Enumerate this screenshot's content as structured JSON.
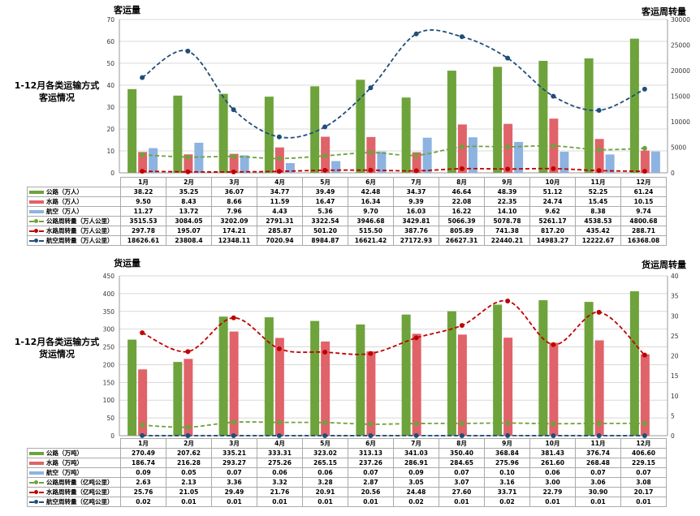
{
  "charts": [
    {
      "side_title": [
        "1-12月各类运输方式",
        "客运情况"
      ],
      "left_title": "客运量",
      "right_title": "客运周转量"
    },
    {
      "side_title": [
        "1-12月各类运输方式",
        "货运情况"
      ],
      "left_title": "货运量",
      "right_title": "货运周转量"
    }
  ],
  "chart_data": [
    {
      "type": "bar+line",
      "title": "1-12月各类运输方式 客运情况",
      "ylabel": "客运量",
      "y2label": "客运周转量",
      "ylim": [
        0,
        70
      ],
      "yticks_step": 10,
      "y2lim": [
        0,
        30000
      ],
      "y2ticks_step": 5000,
      "grid": true,
      "categories": [
        "1月",
        "2月",
        "3月",
        "4月",
        "5月",
        "6月",
        "7月",
        "8月",
        "9月",
        "10月",
        "11月",
        "12月"
      ],
      "series": [
        {
          "name": "公路（万人）",
          "kind": "bar",
          "axis": "left",
          "color": "#6ea33c",
          "values": [
            "38.22",
            "35.25",
            "36.07",
            "34.77",
            "39.49",
            "42.48",
            "34.37",
            "46.64",
            "48.39",
            "51.12",
            "52.25",
            "61.24"
          ]
        },
        {
          "name": "水路（万人）",
          "kind": "bar",
          "axis": "left",
          "color": "#e0636a",
          "values": [
            "9.50",
            "8.43",
            "8.66",
            "11.59",
            "16.47",
            "16.34",
            "9.39",
            "22.08",
            "22.35",
            "24.74",
            "15.45",
            "10.15"
          ]
        },
        {
          "name": "航空（万人）",
          "kind": "bar",
          "axis": "left",
          "color": "#8db3e0",
          "values": [
            "11.27",
            "13.72",
            "7.96",
            "4.43",
            "5.36",
            "9.70",
            "16.03",
            "16.22",
            "14.10",
            "9.62",
            "8.38",
            "9.74"
          ]
        },
        {
          "name": "公路周转量（万人公里）",
          "kind": "line",
          "axis": "right",
          "color": "#6ea33c",
          "values": [
            "3515.53",
            "3084.05",
            "3202.09",
            "2791.31",
            "3322.54",
            "3946.68",
            "3429.81",
            "5066.39",
            "5078.78",
            "5261.17",
            "4538.53",
            "4800.68"
          ]
        },
        {
          "name": "水路周转量（万人公里）",
          "kind": "line",
          "axis": "right",
          "color": "#c00000",
          "values": [
            "297.78",
            "195.07",
            "174.21",
            "285.87",
            "501.20",
            "515.50",
            "387.76",
            "805.89",
            "741.38",
            "817.20",
            "435.42",
            "288.71"
          ]
        },
        {
          "name": "航空周转量（万人公里）",
          "kind": "line",
          "axis": "right",
          "color": "#1f4e79",
          "values": [
            "18626.61",
            "23808.4",
            "12348.11",
            "7020.94",
            "8984.87",
            "16621.42",
            "27172.93",
            "26627.31",
            "22440.21",
            "14983.27",
            "12222.67",
            "16368.08"
          ]
        }
      ]
    },
    {
      "type": "bar+line",
      "title": "1-12月各类运输方式 货运情况",
      "ylabel": "货运量",
      "y2label": "货运周转量",
      "ylim": [
        0,
        450
      ],
      "yticks_step": 50,
      "y2lim": [
        0,
        40
      ],
      "y2ticks_step": 5,
      "grid": true,
      "categories": [
        "1月",
        "2月",
        "3月",
        "4月",
        "5月",
        "6月",
        "7月",
        "8月",
        "9月",
        "10月",
        "11月",
        "12月"
      ],
      "series": [
        {
          "name": "公路（万吨）",
          "kind": "bar",
          "axis": "left",
          "color": "#6ea33c",
          "values": [
            "270.49",
            "207.62",
            "335.21",
            "333.31",
            "323.02",
            "313.13",
            "341.03",
            "350.40",
            "368.84",
            "381.43",
            "376.74",
            "406.60"
          ]
        },
        {
          "name": "水路（万吨）",
          "kind": "bar",
          "axis": "left",
          "color": "#e0636a",
          "values": [
            "186.74",
            "216.28",
            "293.27",
            "275.26",
            "265.15",
            "237.26",
            "286.91",
            "284.65",
            "275.96",
            "261.60",
            "268.48",
            "229.15"
          ]
        },
        {
          "name": "航空（万吨）",
          "kind": "bar",
          "axis": "left",
          "color": "#8db3e0",
          "values": [
            "0.09",
            "0.05",
            "0.07",
            "0.06",
            "0.06",
            "0.07",
            "0.09",
            "0.07",
            "0.10",
            "0.06",
            "0.07",
            "0.07"
          ]
        },
        {
          "name": "公路周转量（亿吨公里）",
          "kind": "line",
          "axis": "right",
          "color": "#6ea33c",
          "values": [
            "2.63",
            "2.13",
            "3.36",
            "3.32",
            "3.28",
            "2.87",
            "3.05",
            "3.07",
            "3.16",
            "3.00",
            "3.06",
            "3.08"
          ]
        },
        {
          "name": "水路周转量（亿吨公里）",
          "kind": "line",
          "axis": "right",
          "color": "#c00000",
          "values": [
            "25.76",
            "21.05",
            "29.49",
            "21.76",
            "20.91",
            "20.56",
            "24.48",
            "27.60",
            "33.71",
            "22.79",
            "30.90",
            "20.17"
          ]
        },
        {
          "name": "航空周转量（亿吨公里）",
          "kind": "line",
          "axis": "right",
          "color": "#1f4e79",
          "values": [
            "0.02",
            "0.01",
            "0.01",
            "0.01",
            "0.01",
            "0.01",
            "0.02",
            "0.01",
            "0.02",
            "0.01",
            "0.01",
            "0.01"
          ]
        }
      ]
    }
  ]
}
